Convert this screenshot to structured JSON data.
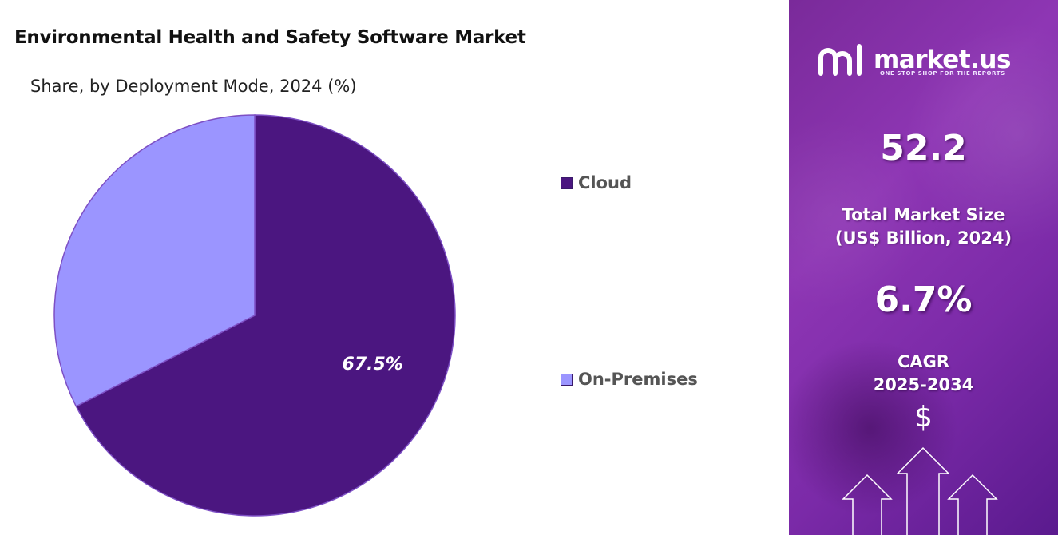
{
  "header": {
    "title": "Environmental Health and Safety Software Market",
    "subtitle": "Share, by Deployment Mode, 2024 (%)"
  },
  "chart_data": {
    "type": "pie",
    "title": "Environmental Health and Safety Software Market",
    "subtitle": "Share, by Deployment Mode, 2024 (%)",
    "categories": [
      "Cloud",
      "On-Premises"
    ],
    "values": [
      67.5,
      32.5
    ],
    "data_labels": [
      "67.5%",
      ""
    ],
    "colors": [
      "#4b1680",
      "#9b95ff"
    ],
    "legend_position": "right"
  },
  "sidebar": {
    "brand_name": "market.us",
    "brand_tagline": "ONE STOP SHOP FOR THE REPORTS",
    "market_size_value": "52.2",
    "market_size_label_line1": "Total Market Size",
    "market_size_label_line2": "(US$ Billion, 2024)",
    "cagr_value": "6.7%",
    "cagr_label_line1": "CAGR",
    "cagr_label_line2": "2025-2034",
    "currency_symbol": "$"
  }
}
